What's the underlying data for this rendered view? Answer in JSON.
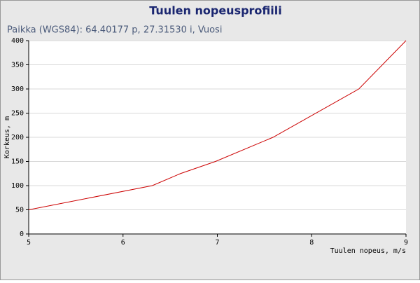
{
  "chart_data": {
    "type": "line",
    "title": "Tuulen nopeusprofiili",
    "subtitle": "Paikka (WGS84): 64.40177 p, 27.31530 i, Vuosi",
    "x_label": "Tuulen nopeus, m/s",
    "y_label": "Korkeus, m",
    "x": [
      5,
      6.31,
      6.61,
      6.98,
      7.59,
      8.5,
      9
    ],
    "series": [
      {
        "color": "#cc0000",
        "values": [
          50,
          100,
          125,
          150,
          200,
          300,
          400
        ]
      }
    ],
    "xlim": [
      5,
      9
    ],
    "xticks": [
      5,
      6,
      7,
      8,
      9
    ],
    "ylim": [
      0,
      400
    ],
    "yticks": [
      0,
      50,
      100,
      150,
      200,
      250,
      300,
      350,
      400
    ],
    "grid": true
  }
}
